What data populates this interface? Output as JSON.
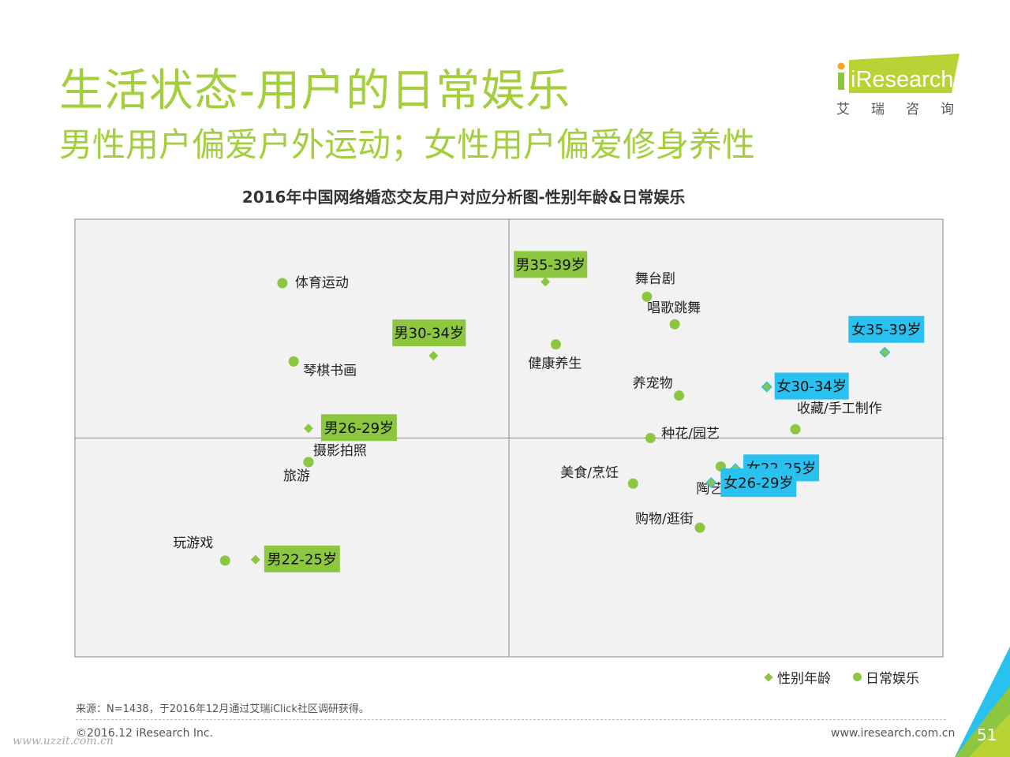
{
  "header": {
    "title": "生活状态-用户的日常娱乐",
    "subtitle": "男性用户偏爱户外运动；女性用户偏爱修身养性"
  },
  "logo": {
    "text": "iResearch",
    "sub": "艾瑞咨询"
  },
  "colors": {
    "brand_green": "#a4cf3c",
    "male_box": "#8dc63f",
    "female_box": "#29c1ef",
    "dot": "#8dc63f"
  },
  "chart_data": {
    "type": "scatter",
    "title": "2016年中国网络婚恋交友用户对应分析图-性别年龄&日常娱乐",
    "xlim": [
      0,
      100
    ],
    "ylim": [
      0,
      100
    ],
    "grid": false,
    "axes_cross": [
      50,
      50
    ],
    "legend_position": "bottom-right",
    "series": [
      {
        "name": "性别年龄",
        "marker": "diamond",
        "points": [
          {
            "label": "男35-39岁",
            "x": 54.2,
            "y": 85.7,
            "group": "male"
          },
          {
            "label": "男30-34岁",
            "x": 41.3,
            "y": 68.8,
            "group": "male"
          },
          {
            "label": "男26-29岁",
            "x": 26.9,
            "y": 52.2,
            "group": "male"
          },
          {
            "label": "男22-25岁",
            "x": 20.8,
            "y": 22.2,
            "group": "male"
          },
          {
            "label": "女35-39岁",
            "x": 93.3,
            "y": 69.6,
            "group": "female"
          },
          {
            "label": "女30-34岁",
            "x": 79.7,
            "y": 61.7,
            "group": "female"
          },
          {
            "label": "女22-25岁",
            "x": 76.1,
            "y": 43.0,
            "group": "female"
          },
          {
            "label": "女26-29岁",
            "x": 73.3,
            "y": 39.8,
            "group": "female"
          }
        ]
      },
      {
        "name": "日常娱乐",
        "marker": "dot",
        "points": [
          {
            "label": "体育运动",
            "x": 23.9,
            "y": 85.4
          },
          {
            "label": "舞台剧",
            "x": 65.9,
            "y": 82.3
          },
          {
            "label": "唱歌跳舞",
            "x": 69.1,
            "y": 76.0
          },
          {
            "label": "健康养生",
            "x": 55.4,
            "y": 71.4
          },
          {
            "label": "琴棋书画",
            "x": 25.2,
            "y": 67.5
          },
          {
            "label": "养宠物",
            "x": 69.6,
            "y": 59.7
          },
          {
            "label": "收藏/手工制作",
            "x": 83.0,
            "y": 52.0
          },
          {
            "label": "种花/园艺",
            "x": 66.3,
            "y": 50.0
          },
          {
            "label": "摄影拍照",
            "x": 26.9,
            "y": 44.5
          },
          {
            "label": "旅游",
            "x": 26.9,
            "y": 44.5
          },
          {
            "label": "陶艺/茶艺",
            "x": 74.4,
            "y": 43.5
          },
          {
            "label": "美食/烹饪",
            "x": 64.3,
            "y": 39.6
          },
          {
            "label": "购物/逛街",
            "x": 72.0,
            "y": 29.5
          },
          {
            "label": "玩游戏",
            "x": 17.3,
            "y": 22.0
          }
        ]
      }
    ]
  },
  "legend": {
    "items": [
      "性别年龄",
      "日常娱乐"
    ]
  },
  "footer": {
    "source": "来源：N=1438，于2016年12月通过艾瑞iClick社区调研获得。",
    "copyright": "©2016.12 iResearch Inc.",
    "website": "www.iresearch.com.cn",
    "page": "51",
    "watermark": "www.uzzit.com.cn"
  }
}
